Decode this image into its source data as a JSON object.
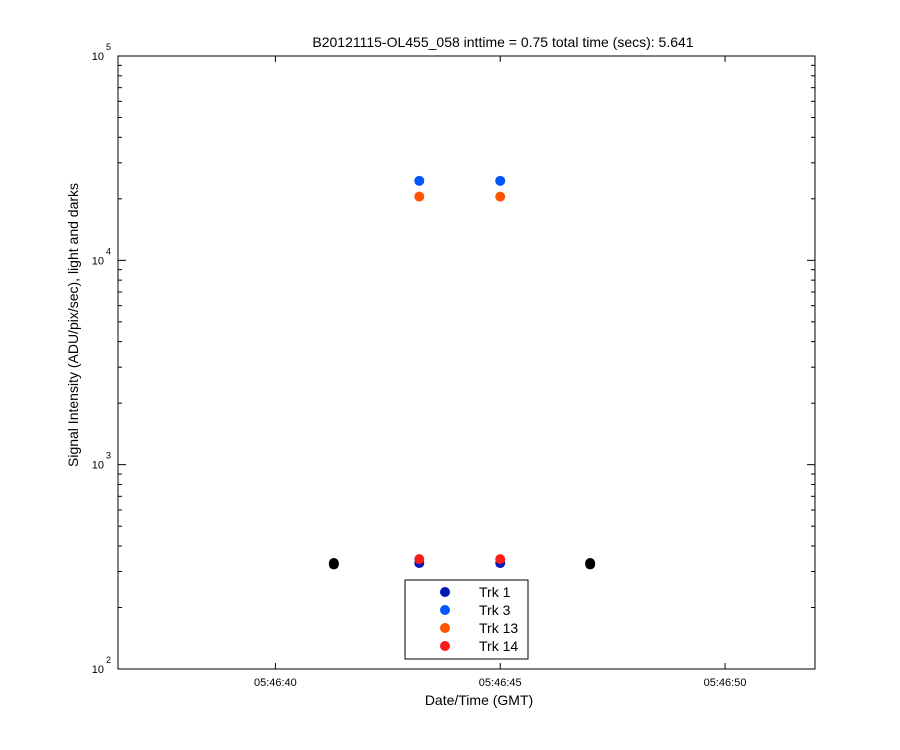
{
  "chart_data": {
    "type": "scatter",
    "title": "B20121115-OL455_058 inttime = 0.75 total time (secs): 5.641",
    "xlabel": "Date/Time (GMT)",
    "ylabel": "Signal Intensity (ADU/pix/sec), light and darks",
    "x_axis": {
      "kind": "time",
      "min": "05:46:36.5",
      "max": "05:46:52.0",
      "ticks": [
        "05:46:40",
        "05:46:45",
        "05:46:50"
      ]
    },
    "y_axis": {
      "scale": "log",
      "min": 100,
      "max": 100000,
      "ticks": [
        {
          "base": "10",
          "exp": "2",
          "value": 100
        },
        {
          "base": "10",
          "exp": "3",
          "value": 1000
        },
        {
          "base": "10",
          "exp": "4",
          "value": 10000
        },
        {
          "base": "10",
          "exp": "5",
          "value": 100000
        }
      ]
    },
    "grid": false,
    "legend_position": "bottom-center",
    "series": [
      {
        "name": "Trk 1",
        "color": "#0019b3",
        "points": [
          {
            "x": "05:46:43.2",
            "y": 330
          },
          {
            "x": "05:46:45.0",
            "y": 330
          }
        ]
      },
      {
        "name": "Trk 3",
        "color": "#0055ff",
        "points": [
          {
            "x": "05:46:43.2",
            "y": 24500
          },
          {
            "x": "05:46:45.0",
            "y": 24500
          }
        ]
      },
      {
        "name": "Trk 13",
        "color": "#ff5500",
        "points": [
          {
            "x": "05:46:43.2",
            "y": 20500
          },
          {
            "x": "05:46:45.0",
            "y": 20500
          }
        ]
      },
      {
        "name": "Trk 14",
        "color": "#ff1a1a",
        "points": [
          {
            "x": "05:46:43.2",
            "y": 345
          },
          {
            "x": "05:46:45.0",
            "y": 345
          }
        ]
      }
    ],
    "dark_points": {
      "color": "#000000",
      "points": [
        {
          "x": "05:46:41.3",
          "y": 325
        },
        {
          "x": "05:46:41.3",
          "y": 330
        },
        {
          "x": "05:46:47.0",
          "y": 325
        },
        {
          "x": "05:46:47.0",
          "y": 330
        }
      ]
    }
  }
}
